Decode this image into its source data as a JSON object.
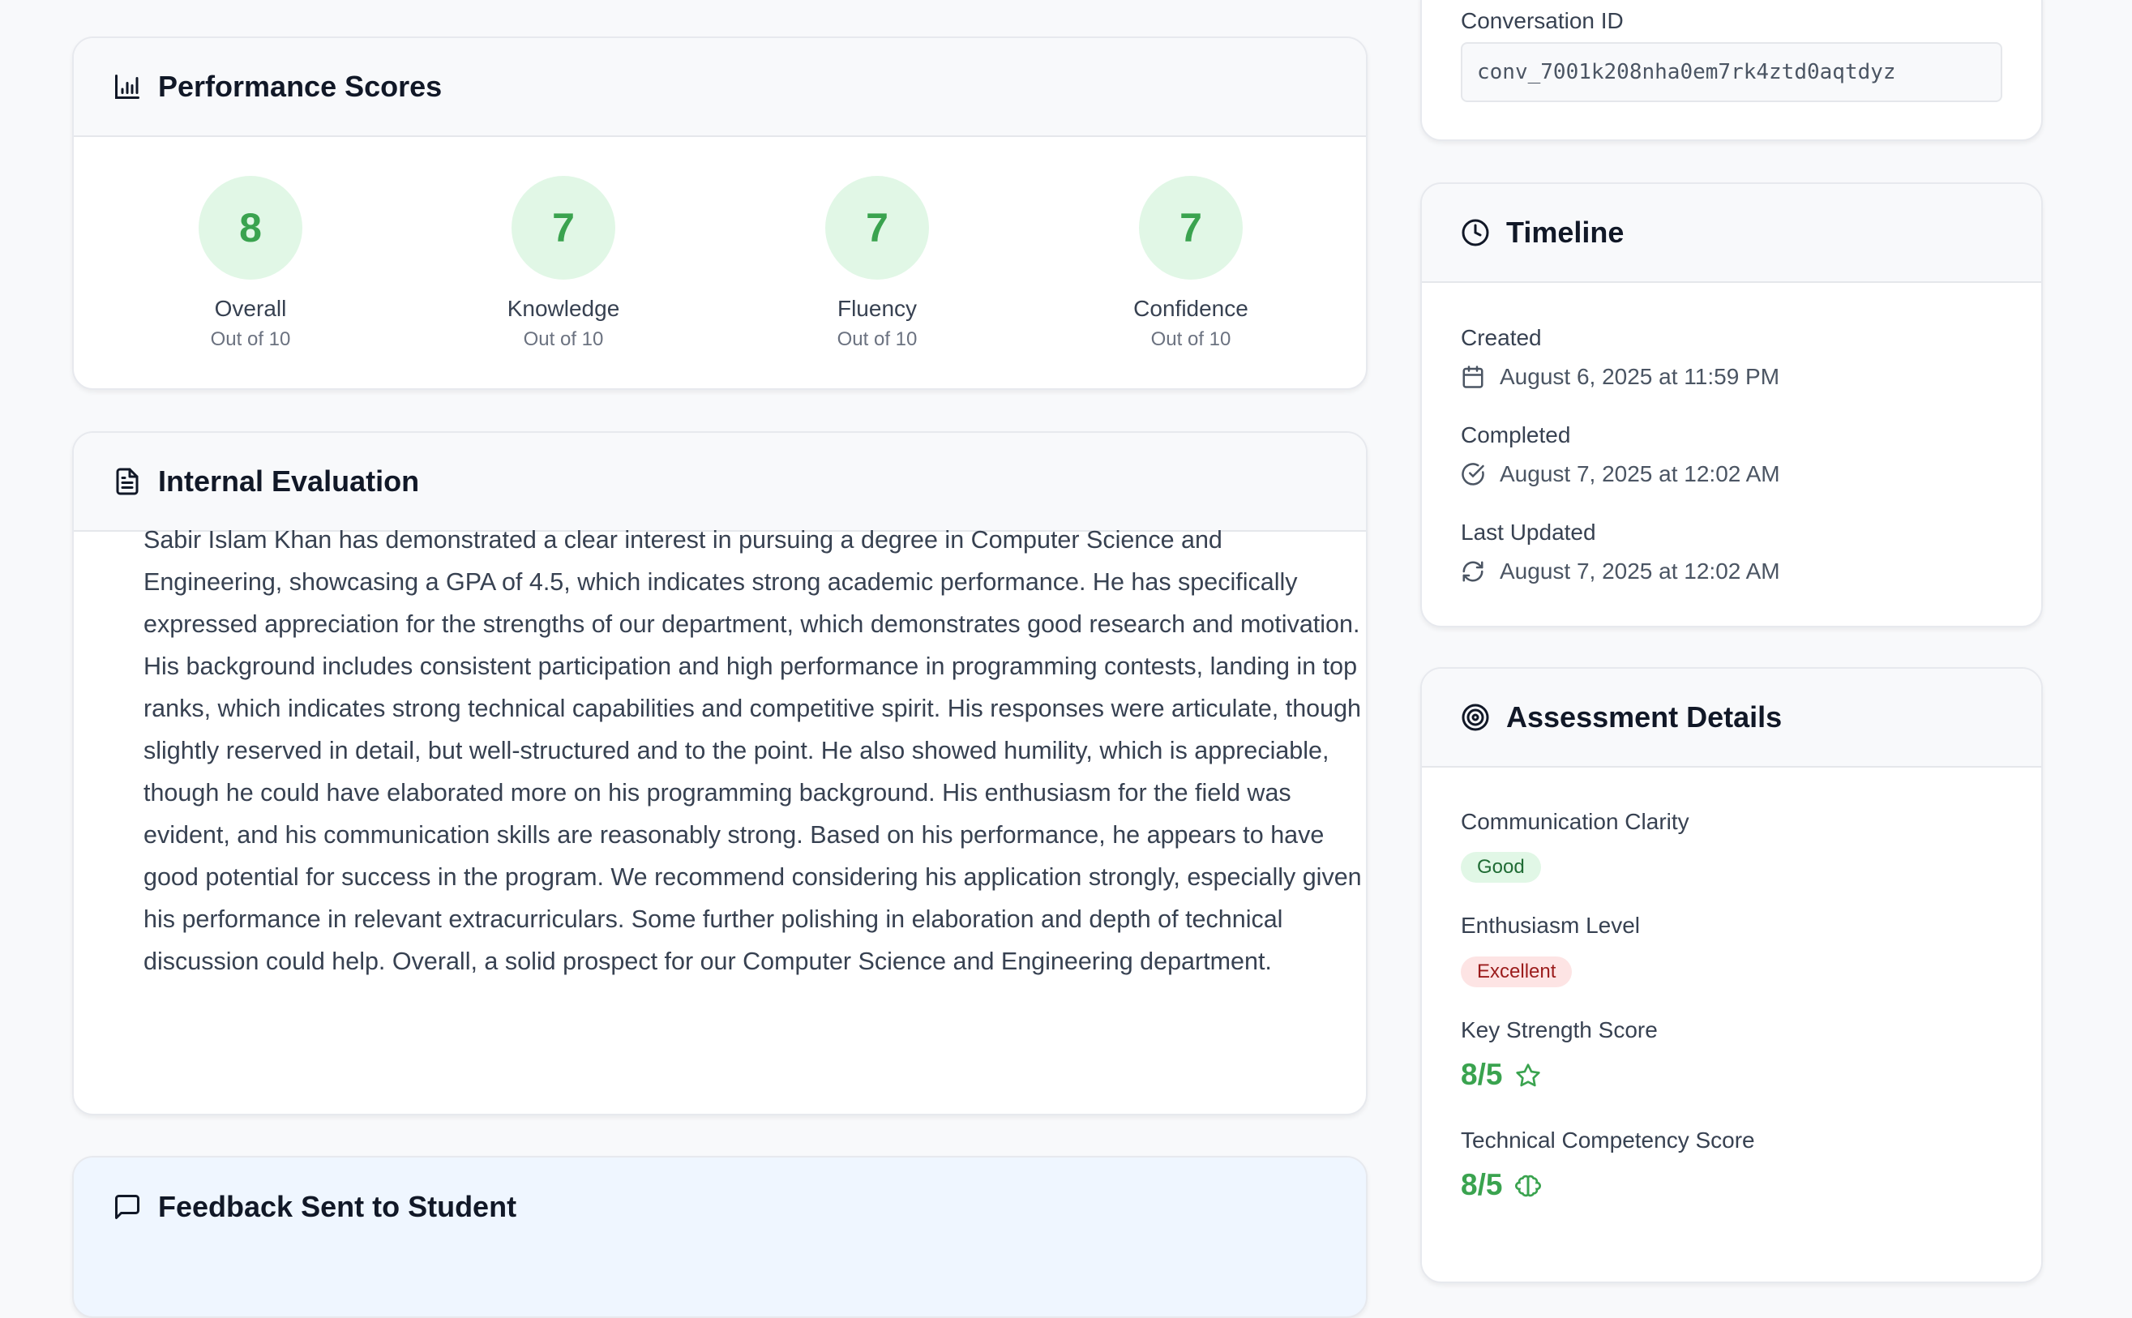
{
  "performance": {
    "title": "Performance Scores",
    "icon": "bar-chart-icon",
    "scores": [
      {
        "value": "8",
        "label": "Overall",
        "sub": "Out of 10"
      },
      {
        "value": "7",
        "label": "Knowledge",
        "sub": "Out of 10"
      },
      {
        "value": "7",
        "label": "Fluency",
        "sub": "Out of 10"
      },
      {
        "value": "7",
        "label": "Confidence",
        "sub": "Out of 10"
      }
    ]
  },
  "evaluation": {
    "title": "Internal Evaluation",
    "icon": "document-icon",
    "text": "Sabir Islam Khan has demonstrated a clear interest in pursuing a degree in Computer Science and Engineering, showcasing a GPA of 4.5, which indicates strong academic performance. He has specifically expressed appreciation for the strengths of our department, which demonstrates good research and motivation. His background includes consistent participation and high performance in programming contests, landing in top ranks, which indicates strong technical capabilities and competitive spirit. His responses were articulate, though slightly reserved in detail, but well-structured and to the point. He also showed humility, which is appreciable, though he could have elaborated more on his programming background. His enthusiasm for the field was evident, and his communication skills are reasonably strong. Based on his performance, he appears to have good potential for success in the program. We recommend considering his application strongly, especially given his performance in relevant extracurriculars. Some further polishing in elaboration and depth of technical discussion could help. Overall, a solid prospect for our Computer Science and Engineering department."
  },
  "feedback": {
    "title": "Feedback Sent to Student",
    "icon": "message-icon"
  },
  "conversation": {
    "label": "Conversation ID",
    "value": "conv_7001k208nha0em7rk4ztd0aqtdyz"
  },
  "timeline": {
    "title": "Timeline",
    "icon": "clock-icon",
    "items": [
      {
        "label": "Created",
        "value": "August 6, 2025 at 11:59 PM",
        "icon": "calendar-icon"
      },
      {
        "label": "Completed",
        "value": "August 7, 2025 at 12:02 AM",
        "icon": "check-circle-icon"
      },
      {
        "label": "Last Updated",
        "value": "August 7, 2025 at 12:02 AM",
        "icon": "refresh-icon"
      }
    ]
  },
  "assessment": {
    "title": "Assessment Details",
    "icon": "target-icon",
    "communication": {
      "label": "Communication Clarity",
      "badge": "Good",
      "bg": "#e1f7e6",
      "color": "#1f6b34"
    },
    "enthusiasm": {
      "label": "Enthusiasm Level",
      "badge": "Excellent",
      "bg": "#fde4e4",
      "color": "#9b1c1c"
    },
    "key_strength": {
      "label": "Key Strength Score",
      "value": "8/5",
      "icon": "star-icon"
    },
    "technical": {
      "label": "Technical Competency Score",
      "value": "8/5",
      "icon": "brain-icon"
    },
    "accent": "#3aa34f"
  }
}
